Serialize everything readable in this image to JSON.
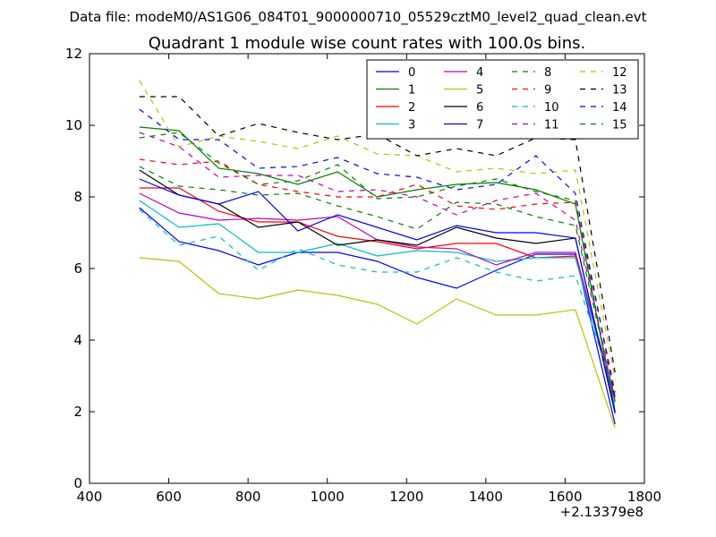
{
  "header": {
    "suptitle": "Data file: modeM0/AS1G06_084T01_9000000710_05529cztM0_level2_quad_clean.evt",
    "title": "Quadrant 1 module wise count rates with 100.0s bins."
  },
  "chart_data": {
    "type": "line",
    "suptitle": "Data file: modeM0/AS1G06_084T01_9000000710_05529cztM0_level2_quad_clean.evt",
    "title": "Quadrant 1 module wise count rates with 100.0s bins.",
    "xlabel": "",
    "ylabel": "",
    "xlim": [
      400,
      1800
    ],
    "ylim": [
      0,
      12
    ],
    "x_offset_label": "+2.13379e8",
    "xticks": [
      400,
      600,
      800,
      1000,
      1200,
      1400,
      1600,
      1800
    ],
    "yticks": [
      0,
      2,
      4,
      6,
      8,
      10,
      12
    ],
    "grid": false,
    "legend_position": "top-right",
    "legend_columns": 4,
    "x": [
      526,
      626,
      726,
      826,
      926,
      1026,
      1126,
      1226,
      1326,
      1426,
      1526,
      1626,
      1726
    ],
    "series": [
      {
        "name": "0",
        "color": "#0000ff",
        "dash": "solid",
        "values": [
          7.7,
          6.75,
          6.5,
          6.1,
          6.45,
          6.45,
          6.2,
          5.75,
          5.45,
          5.95,
          6.4,
          6.4,
          1.65
        ]
      },
      {
        "name": "1",
        "color": "#008000",
        "dash": "solid",
        "values": [
          9.95,
          9.85,
          8.8,
          8.65,
          8.35,
          8.7,
          8.0,
          8.2,
          8.35,
          8.4,
          8.2,
          7.8,
          2.0
        ]
      },
      {
        "name": "2",
        "color": "#ff0000",
        "dash": "solid",
        "values": [
          8.25,
          8.25,
          7.6,
          7.3,
          7.3,
          6.9,
          6.75,
          6.55,
          6.7,
          6.7,
          6.3,
          6.35,
          2.4
        ]
      },
      {
        "name": "3",
        "color": "#00bfbf",
        "dash": "solid",
        "values": [
          7.9,
          7.15,
          7.25,
          6.45,
          6.45,
          6.7,
          6.35,
          6.5,
          6.45,
          6.2,
          6.3,
          6.3,
          2.25
        ]
      },
      {
        "name": "4",
        "color": "#bf00bf",
        "dash": "solid",
        "values": [
          8.1,
          7.55,
          7.35,
          7.4,
          7.35,
          7.45,
          6.8,
          6.6,
          6.55,
          6.1,
          6.45,
          6.45,
          2.3
        ]
      },
      {
        "name": "5",
        "color": "#bfbf00",
        "dash": "solid",
        "values": [
          6.3,
          6.2,
          5.3,
          5.15,
          5.4,
          5.25,
          5.0,
          4.45,
          5.15,
          4.7,
          4.7,
          4.85,
          1.55
        ]
      },
      {
        "name": "6",
        "color": "#000000",
        "dash": "solid",
        "values": [
          8.75,
          8.05,
          7.8,
          7.15,
          7.3,
          6.65,
          6.8,
          6.65,
          7.15,
          6.85,
          6.7,
          6.85,
          2.0
        ]
      },
      {
        "name": "7",
        "color": "#0000ff",
        "dash": "solid",
        "values": [
          8.5,
          8.05,
          7.8,
          8.15,
          7.05,
          7.5,
          7.15,
          6.8,
          7.2,
          7.0,
          7.0,
          6.85,
          1.95
        ]
      },
      {
        "name": "8",
        "color": "#008000",
        "dash": "dashed",
        "values": [
          8.85,
          8.3,
          8.2,
          8.05,
          8.1,
          7.75,
          7.45,
          7.1,
          7.85,
          7.8,
          7.45,
          7.2,
          2.3
        ]
      },
      {
        "name": "9",
        "color": "#ff0000",
        "dash": "dashed",
        "values": [
          9.05,
          8.9,
          9.0,
          8.35,
          8.15,
          8.0,
          8.0,
          8.35,
          7.75,
          7.65,
          7.8,
          7.85,
          2.55
        ]
      },
      {
        "name": "10",
        "color": "#00bfbf",
        "dash": "dashed",
        "values": [
          7.65,
          6.65,
          6.9,
          5.95,
          6.55,
          6.1,
          5.9,
          5.9,
          6.3,
          5.9,
          5.65,
          5.8,
          2.5
        ]
      },
      {
        "name": "11",
        "color": "#bf00bf",
        "dash": "dashed",
        "values": [
          9.8,
          9.4,
          8.55,
          8.6,
          8.6,
          8.15,
          8.2,
          8.0,
          7.5,
          7.9,
          8.1,
          7.35,
          2.4
        ]
      },
      {
        "name": "12",
        "color": "#bfbf00",
        "dash": "dashed",
        "values": [
          11.25,
          9.4,
          9.7,
          9.55,
          9.35,
          9.7,
          9.2,
          9.15,
          8.7,
          8.8,
          8.65,
          8.75,
          2.9
        ]
      },
      {
        "name": "13",
        "color": "#000000",
        "dash": "dashed",
        "values": [
          10.8,
          10.8,
          9.7,
          10.05,
          9.8,
          9.6,
          9.75,
          9.15,
          9.35,
          9.15,
          9.65,
          9.6,
          3.1
        ]
      },
      {
        "name": "14",
        "color": "#0000ff",
        "dash": "dashed",
        "values": [
          10.45,
          9.6,
          9.6,
          8.8,
          8.85,
          9.1,
          8.65,
          8.55,
          8.2,
          8.35,
          9.15,
          8.1,
          2.4
        ]
      },
      {
        "name": "15",
        "color": "#008000",
        "dash": "dashed",
        "values": [
          9.65,
          9.8,
          8.95,
          8.35,
          8.45,
          8.9,
          7.95,
          8.0,
          8.3,
          8.5,
          8.15,
          7.9,
          2.05
        ]
      }
    ]
  }
}
